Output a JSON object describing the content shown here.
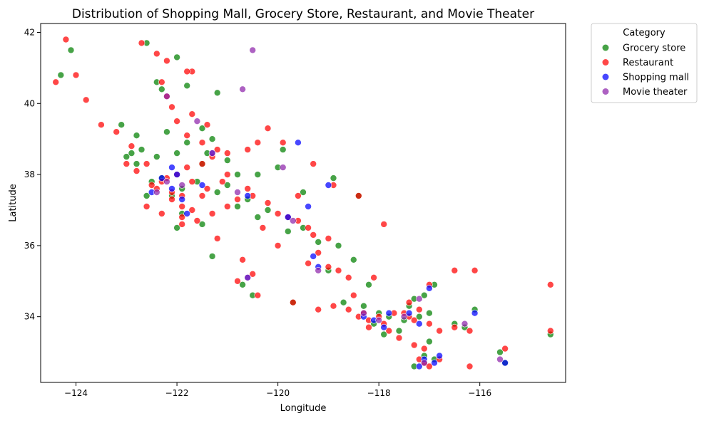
{
  "chart_data": {
    "type": "scatter",
    "title": "Distribution of Shopping Mall, Grocery Store, Restaurant, and Movie Theater",
    "xlabel": "Longitude",
    "ylabel": "Latitude",
    "xlim": [
      -124.7,
      -114.3
    ],
    "ylim": [
      32.15,
      42.25
    ],
    "x_ticks": [
      -124,
      -122,
      -120,
      -118,
      -116
    ],
    "x_tick_labels": [
      "−124",
      "−122",
      "−120",
      "−118",
      "−116"
    ],
    "y_ticks": [
      34,
      36,
      38,
      40,
      42
    ],
    "y_tick_labels": [
      "34",
      "36",
      "38",
      "40",
      "42"
    ],
    "grid": false,
    "legend": {
      "title": "Category",
      "placement": "outside-top-right"
    },
    "series": [
      {
        "name": "Grocery store",
        "color": "#008000",
        "points": [
          [
            -124.1,
            41.5
          ],
          [
            -124.3,
            40.8
          ],
          [
            -122.0,
            41.3
          ],
          [
            -121.2,
            40.3
          ],
          [
            -122.4,
            40.6
          ],
          [
            -122.3,
            40.4
          ],
          [
            -121.8,
            40.5
          ],
          [
            -122.6,
            41.7
          ],
          [
            -123.1,
            39.4
          ],
          [
            -122.8,
            39.1
          ],
          [
            -122.2,
            39.2
          ],
          [
            -121.5,
            39.3
          ],
          [
            -121.3,
            39.0
          ],
          [
            -121.8,
            38.9
          ],
          [
            -122.0,
            38.6
          ],
          [
            -122.4,
            38.5
          ],
          [
            -122.8,
            38.3
          ],
          [
            -123.0,
            38.5
          ],
          [
            -122.3,
            37.9
          ],
          [
            -121.9,
            37.6
          ],
          [
            -122.1,
            37.4
          ],
          [
            -121.6,
            37.8
          ],
          [
            -121.2,
            37.5
          ],
          [
            -121.0,
            37.7
          ],
          [
            -120.6,
            37.3
          ],
          [
            -120.4,
            36.8
          ],
          [
            -120.8,
            37.1
          ],
          [
            -119.8,
            36.4
          ],
          [
            -119.5,
            36.5
          ],
          [
            -119.2,
            36.1
          ],
          [
            -118.8,
            36.0
          ],
          [
            -119.0,
            35.3
          ],
          [
            -118.5,
            35.6
          ],
          [
            -118.7,
            34.4
          ],
          [
            -118.3,
            34.3
          ],
          [
            -118.0,
            34.1
          ],
          [
            -117.8,
            34.0
          ],
          [
            -117.5,
            33.9
          ],
          [
            -117.2,
            34.0
          ],
          [
            -117.0,
            34.1
          ],
          [
            -116.5,
            33.8
          ],
          [
            -116.3,
            33.7
          ],
          [
            -116.1,
            34.2
          ],
          [
            -117.3,
            34.5
          ],
          [
            -117.1,
            34.6
          ],
          [
            -116.9,
            34.9
          ],
          [
            -117.0,
            33.3
          ],
          [
            -117.1,
            32.9
          ],
          [
            -117.3,
            32.6
          ],
          [
            -115.6,
            33.0
          ],
          [
            -115.5,
            32.7
          ],
          [
            -114.6,
            33.5
          ],
          [
            -120.0,
            38.2
          ],
          [
            -119.9,
            38.7
          ],
          [
            -120.4,
            38.0
          ],
          [
            -122.6,
            37.4
          ],
          [
            -122.5,
            37.8
          ],
          [
            -121.5,
            38.3
          ],
          [
            -121.4,
            38.6
          ],
          [
            -122.7,
            38.7
          ],
          [
            -120.7,
            34.9
          ],
          [
            -120.5,
            34.6
          ],
          [
            -121.3,
            35.7
          ],
          [
            -119.7,
            34.4
          ],
          [
            -118.4,
            37.4
          ],
          [
            -118.9,
            37.9
          ],
          [
            -119.5,
            37.5
          ],
          [
            -120.2,
            37.0
          ],
          [
            -121.5,
            36.6
          ],
          [
            -121.9,
            36.9
          ],
          [
            -122.0,
            36.5
          ],
          [
            -118.2,
            34.9
          ],
          [
            -117.4,
            34.3
          ],
          [
            -117.6,
            33.6
          ],
          [
            -116.9,
            32.8
          ],
          [
            -118.1,
            33.8
          ],
          [
            -117.9,
            33.5
          ],
          [
            -120.8,
            38.0
          ],
          [
            -121.0,
            38.4
          ],
          [
            -122.9,
            38.6
          ]
        ]
      },
      {
        "name": "Restaurant",
        "color": "#ff0000",
        "points": [
          [
            -124.2,
            41.8
          ],
          [
            -124.4,
            40.6
          ],
          [
            -124.0,
            40.8
          ],
          [
            -123.8,
            40.1
          ],
          [
            -123.5,
            39.4
          ],
          [
            -123.2,
            39.2
          ],
          [
            -122.9,
            38.8
          ],
          [
            -123.0,
            38.3
          ],
          [
            -122.7,
            41.7
          ],
          [
            -122.4,
            41.4
          ],
          [
            -122.2,
            41.2
          ],
          [
            -121.7,
            40.9
          ],
          [
            -122.3,
            40.6
          ],
          [
            -122.2,
            40.2
          ],
          [
            -122.1,
            39.9
          ],
          [
            -122.0,
            39.5
          ],
          [
            -121.7,
            39.7
          ],
          [
            -121.4,
            39.4
          ],
          [
            -121.8,
            39.1
          ],
          [
            -121.5,
            38.9
          ],
          [
            -121.2,
            38.7
          ],
          [
            -121.0,
            38.6
          ],
          [
            -121.3,
            38.5
          ],
          [
            -121.5,
            38.3
          ],
          [
            -121.8,
            38.2
          ],
          [
            -122.0,
            38.0
          ],
          [
            -122.2,
            37.9
          ],
          [
            -122.3,
            37.8
          ],
          [
            -122.4,
            37.6
          ],
          [
            -122.1,
            37.5
          ],
          [
            -121.9,
            37.4
          ],
          [
            -122.1,
            37.3
          ],
          [
            -121.9,
            37.1
          ],
          [
            -121.7,
            37.0
          ],
          [
            -121.9,
            36.8
          ],
          [
            -121.9,
            36.6
          ],
          [
            -121.6,
            36.7
          ],
          [
            -121.3,
            36.9
          ],
          [
            -121.0,
            37.1
          ],
          [
            -120.8,
            37.3
          ],
          [
            -120.6,
            37.6
          ],
          [
            -120.5,
            37.4
          ],
          [
            -120.2,
            37.2
          ],
          [
            -120.0,
            36.9
          ],
          [
            -119.8,
            36.8
          ],
          [
            -119.6,
            36.7
          ],
          [
            -119.4,
            36.5
          ],
          [
            -119.3,
            36.3
          ],
          [
            -119.0,
            36.2
          ],
          [
            -119.2,
            35.8
          ],
          [
            -119.4,
            35.5
          ],
          [
            -119.0,
            35.4
          ],
          [
            -118.8,
            35.3
          ],
          [
            -118.6,
            35.1
          ],
          [
            -118.1,
            35.1
          ],
          [
            -118.5,
            34.6
          ],
          [
            -118.9,
            34.3
          ],
          [
            -118.6,
            34.2
          ],
          [
            -118.4,
            34.0
          ],
          [
            -118.3,
            34.1
          ],
          [
            -118.2,
            33.9
          ],
          [
            -118.0,
            34.0
          ],
          [
            -117.9,
            33.8
          ],
          [
            -117.7,
            34.1
          ],
          [
            -117.5,
            34.1
          ],
          [
            -117.4,
            34.0
          ],
          [
            -117.3,
            33.9
          ],
          [
            -117.2,
            34.2
          ],
          [
            -117.0,
            33.8
          ],
          [
            -116.8,
            33.6
          ],
          [
            -116.5,
            33.7
          ],
          [
            -116.2,
            33.6
          ],
          [
            -116.1,
            35.3
          ],
          [
            -116.5,
            35.3
          ],
          [
            -117.1,
            33.1
          ],
          [
            -117.2,
            32.8
          ],
          [
            -117.1,
            32.7
          ],
          [
            -117.0,
            32.6
          ],
          [
            -116.8,
            32.8
          ],
          [
            -116.2,
            32.6
          ],
          [
            -115.5,
            33.1
          ],
          [
            -114.6,
            34.9
          ],
          [
            -114.6,
            33.6
          ],
          [
            -117.9,
            36.6
          ],
          [
            -118.4,
            37.4
          ],
          [
            -118.9,
            37.7
          ],
          [
            -119.3,
            38.3
          ],
          [
            -119.9,
            38.9
          ],
          [
            -120.2,
            39.3
          ],
          [
            -120.4,
            38.9
          ],
          [
            -120.6,
            38.7
          ],
          [
            -121.0,
            38.0
          ],
          [
            -121.5,
            37.4
          ],
          [
            -122.6,
            38.3
          ],
          [
            -122.5,
            37.7
          ],
          [
            -120.7,
            35.6
          ],
          [
            -120.5,
            35.2
          ],
          [
            -120.8,
            35.0
          ],
          [
            -120.4,
            34.6
          ],
          [
            -119.7,
            34.4
          ],
          [
            -119.2,
            34.2
          ],
          [
            -117.0,
            34.9
          ],
          [
            -117.4,
            34.4
          ],
          [
            -118.2,
            33.7
          ],
          [
            -117.8,
            33.6
          ],
          [
            -117.6,
            33.4
          ],
          [
            -117.3,
            33.2
          ],
          [
            -120.0,
            36.0
          ],
          [
            -120.3,
            36.5
          ],
          [
            -121.2,
            36.2
          ],
          [
            -122.3,
            36.9
          ],
          [
            -122.6,
            37.1
          ],
          [
            -121.1,
            37.8
          ],
          [
            -121.7,
            37.8
          ],
          [
            -121.4,
            37.6
          ],
          [
            -119.6,
            37.4
          ],
          [
            -121.8,
            40.9
          ],
          [
            -122.8,
            38.1
          ]
        ]
      },
      {
        "name": "Shopping mall",
        "color": "#0000ff",
        "points": [
          [
            -122.3,
            37.9
          ],
          [
            -122.1,
            37.6
          ],
          [
            -121.9,
            37.3
          ],
          [
            -122.0,
            38.0
          ],
          [
            -121.3,
            38.6
          ],
          [
            -121.5,
            37.7
          ],
          [
            -120.6,
            37.4
          ],
          [
            -119.8,
            36.8
          ],
          [
            -119.0,
            37.7
          ],
          [
            -119.4,
            37.1
          ],
          [
            -118.3,
            34.0
          ],
          [
            -118.1,
            33.9
          ],
          [
            -117.8,
            34.1
          ],
          [
            -117.9,
            33.7
          ],
          [
            -117.4,
            34.1
          ],
          [
            -117.2,
            33.8
          ],
          [
            -117.1,
            32.8
          ],
          [
            -117.2,
            32.6
          ],
          [
            -116.9,
            32.7
          ],
          [
            -116.8,
            32.9
          ],
          [
            -116.1,
            34.1
          ],
          [
            -115.5,
            32.7
          ],
          [
            -119.2,
            35.4
          ],
          [
            -119.3,
            35.7
          ],
          [
            -120.6,
            35.1
          ],
          [
            -121.8,
            36.9
          ],
          [
            -122.5,
            37.5
          ],
          [
            -122.1,
            38.2
          ],
          [
            -119.6,
            38.9
          ],
          [
            -117.0,
            34.8
          ]
        ]
      },
      {
        "name": "Movie theater",
        "color": "#8e24aa",
        "points": [
          [
            -120.5,
            41.5
          ],
          [
            -120.7,
            40.4
          ],
          [
            -119.9,
            38.2
          ],
          [
            -122.2,
            40.2
          ],
          [
            -121.9,
            37.7
          ],
          [
            -122.2,
            37.8
          ],
          [
            -121.3,
            38.6
          ],
          [
            -120.8,
            37.5
          ],
          [
            -118.3,
            34.1
          ],
          [
            -118.0,
            33.9
          ],
          [
            -117.5,
            34.0
          ],
          [
            -117.1,
            32.7
          ],
          [
            -116.3,
            33.8
          ],
          [
            -115.6,
            32.8
          ],
          [
            -119.7,
            36.7
          ],
          [
            -120.6,
            35.1
          ],
          [
            -119.2,
            35.3
          ],
          [
            -117.2,
            34.5
          ],
          [
            -122.4,
            37.5
          ],
          [
            -121.6,
            39.5
          ]
        ]
      }
    ]
  }
}
